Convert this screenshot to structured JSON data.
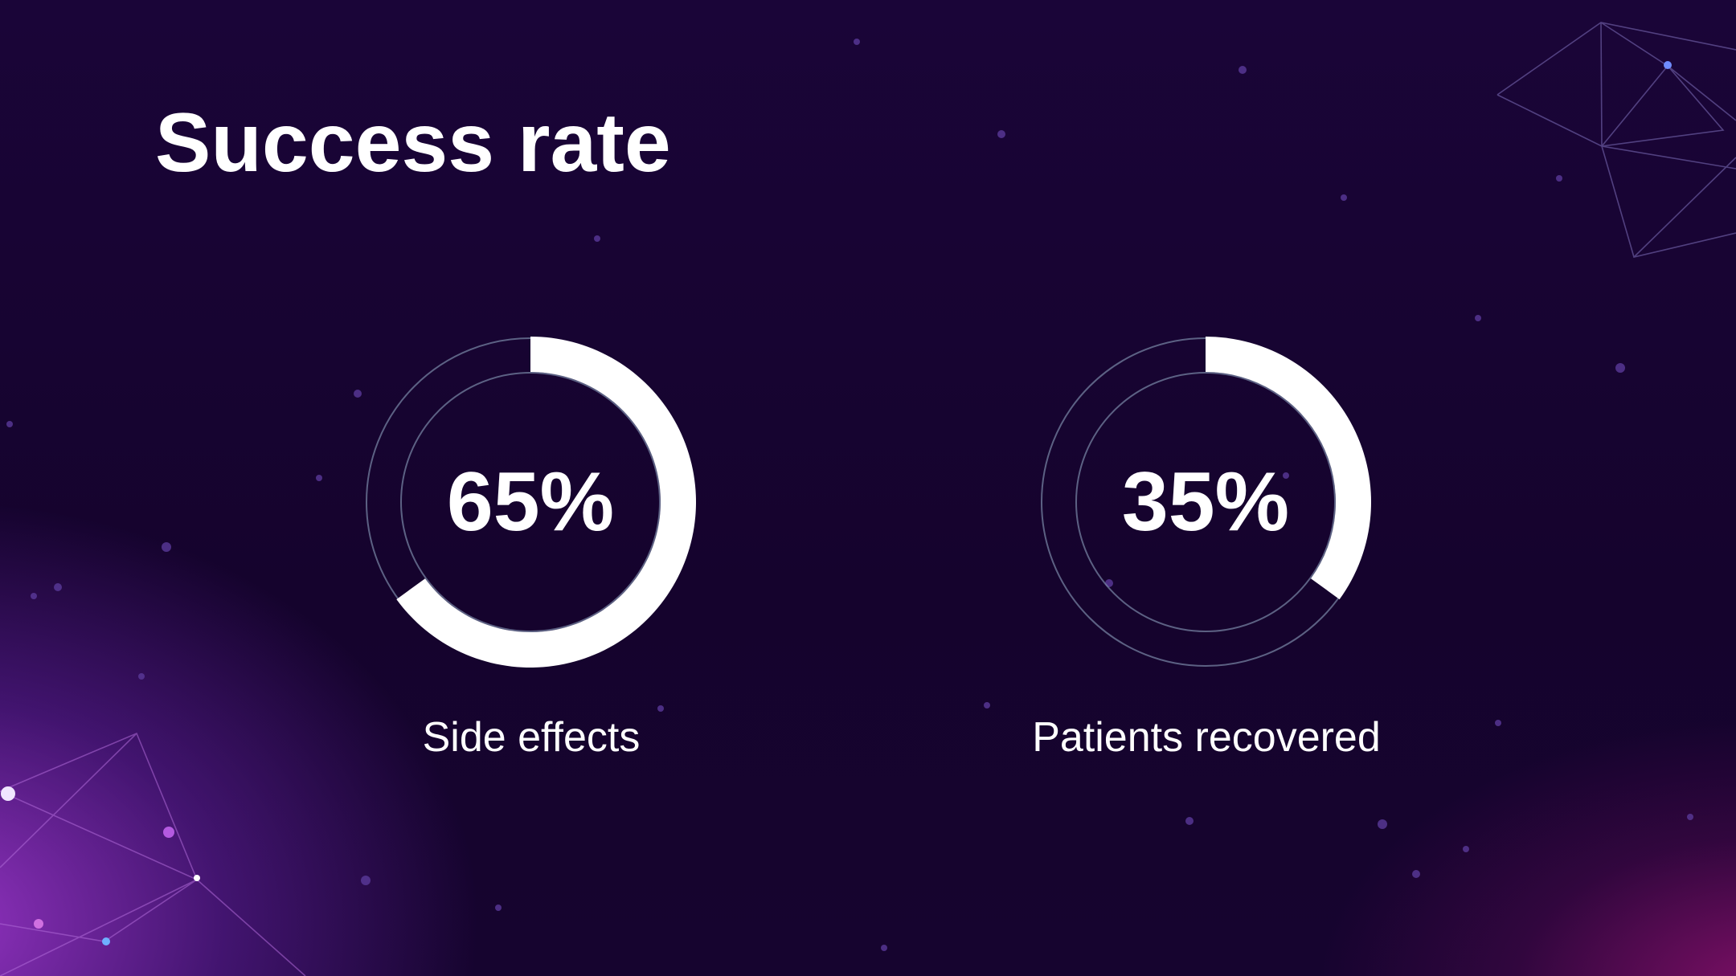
{
  "slide": {
    "title": "Success rate"
  },
  "colors": {
    "background": "#16032f",
    "accent_magenta": "#a83cdc",
    "ring_track": "#7a8aa8",
    "arc_fill": "#ffffff",
    "text": "#ffffff"
  },
  "chart_data": {
    "type": "pie",
    "variant": "donut-progress",
    "items": [
      {
        "label": "Side effects",
        "value": 65,
        "display": "65%"
      },
      {
        "label": "Patients recovered",
        "value": 35,
        "display": "35%"
      }
    ],
    "unit": "%",
    "max": 100
  }
}
